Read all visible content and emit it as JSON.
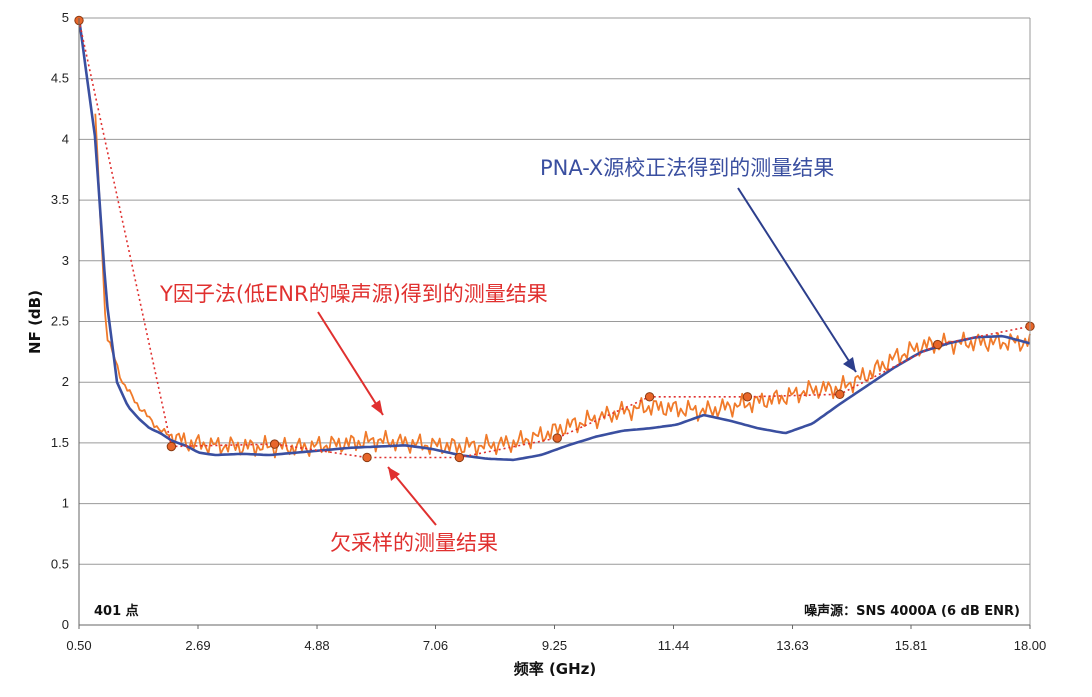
{
  "chart_data": {
    "type": "line",
    "xlabel": "频率 (GHz)",
    "ylabel": "NF (dB)",
    "x_ticks": [
      "0.50",
      "2.69",
      "4.88",
      "7.06",
      "9.25",
      "11.44",
      "13.63",
      "15.81",
      "18.00"
    ],
    "y_ticks": [
      "0",
      "0.5",
      "1",
      "1.5",
      "2",
      "2.5",
      "3",
      "3.5",
      "4",
      "4.5",
      "5"
    ],
    "xlim": [
      0.5,
      18.0
    ],
    "ylim": [
      0,
      5
    ],
    "grid": "horizontal",
    "series": [
      {
        "name": "PNA-X源校正法得到的测量结果",
        "style": "solid",
        "color": "#3a4fa0",
        "x": [
          0.5,
          0.8,
          1.0,
          1.2,
          1.4,
          1.6,
          1.8,
          2.0,
          2.2,
          2.5,
          2.7,
          3.0,
          3.5,
          4.0,
          4.5,
          5.0,
          5.5,
          6.0,
          6.5,
          7.0,
          7.5,
          8.0,
          8.5,
          9.0,
          9.5,
          10.0,
          10.5,
          11.0,
          11.5,
          12.0,
          12.5,
          13.0,
          13.5,
          14.0,
          14.5,
          15.0,
          15.5,
          16.0,
          16.5,
          17.0,
          17.5,
          18.0
        ],
        "y": [
          5.0,
          4.0,
          2.7,
          2.0,
          1.8,
          1.7,
          1.62,
          1.58,
          1.52,
          1.47,
          1.42,
          1.4,
          1.41,
          1.4,
          1.42,
          1.44,
          1.46,
          1.47,
          1.48,
          1.45,
          1.4,
          1.37,
          1.36,
          1.4,
          1.48,
          1.55,
          1.6,
          1.62,
          1.65,
          1.73,
          1.68,
          1.62,
          1.58,
          1.66,
          1.82,
          1.97,
          2.12,
          2.25,
          2.32,
          2.37,
          2.38,
          2.32
        ]
      },
      {
        "name": "Y因子法(低ENR的噪声源)得到的测量结果",
        "style": "noisy",
        "color": "#f07a2a",
        "x": [
          0.8,
          1.0,
          1.3,
          1.6,
          2.0,
          2.5,
          3.0,
          3.5,
          4.0,
          4.5,
          5.0,
          5.5,
          6.0,
          6.5,
          7.0,
          7.5,
          8.0,
          8.5,
          9.0,
          9.5,
          10.0,
          10.5,
          11.0,
          11.5,
          12.0,
          12.5,
          13.0,
          13.5,
          14.0,
          14.5,
          15.0,
          15.5,
          16.0,
          16.5,
          17.0,
          17.5,
          18.0
        ],
        "y": [
          4.2,
          2.4,
          2.0,
          1.8,
          1.6,
          1.5,
          1.48,
          1.47,
          1.47,
          1.46,
          1.48,
          1.5,
          1.52,
          1.5,
          1.48,
          1.47,
          1.48,
          1.5,
          1.56,
          1.64,
          1.7,
          1.76,
          1.8,
          1.78,
          1.76,
          1.8,
          1.84,
          1.88,
          1.94,
          1.95,
          2.06,
          2.2,
          2.3,
          2.32,
          2.33,
          2.33,
          2.33
        ]
      },
      {
        "name": "欠采样的测量结果",
        "style": "dotted",
        "color": "#e0302f",
        "x": [
          0.5,
          2.2,
          4.1,
          5.8,
          7.5,
          9.3,
          11.0,
          12.8,
          14.5,
          16.3,
          18.0
        ],
        "y": [
          4.98,
          1.47,
          1.49,
          1.38,
          1.38,
          1.54,
          1.88,
          1.88,
          1.9,
          2.31,
          2.46
        ]
      }
    ],
    "annotations": [
      {
        "text": "PNA-X源校正法得到的测量结果",
        "color": "#3a4fa0"
      },
      {
        "text": "Y因子法(低ENR的噪声源)得到的测量结果",
        "color": "#e0302f"
      },
      {
        "text": "欠采样的测量结果",
        "color": "#e0302f"
      }
    ],
    "corner_left": "401 点",
    "corner_right": "噪声源：SNS 4000A (6 dB ENR)"
  }
}
